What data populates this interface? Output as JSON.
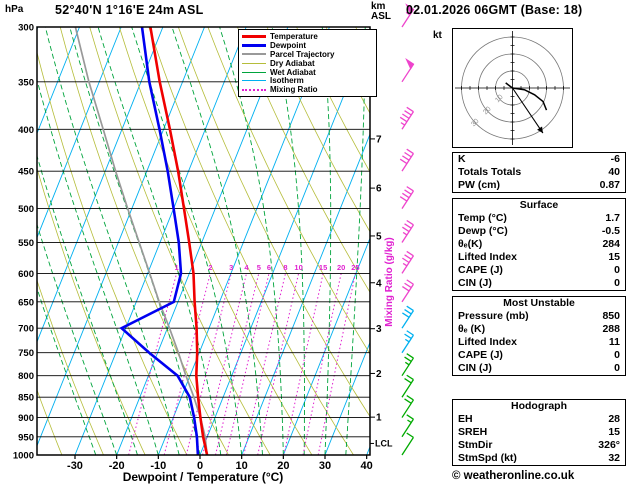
{
  "header": {
    "pressure_unit": "hPa",
    "station": "52°40'N 1°16'E 24m ASL",
    "km": "km",
    "asl": "ASL",
    "datetime": "02.01.2026 06GMT (Base: 18)"
  },
  "legend": {
    "items": [
      {
        "label": "Temperature",
        "color": "#f00000",
        "w": 3,
        "dash": "solid"
      },
      {
        "label": "Dewpoint",
        "color": "#0000f0",
        "w": 3,
        "dash": "solid"
      },
      {
        "label": "Parcel Trajectory",
        "color": "#999999",
        "w": 2,
        "dash": "solid"
      },
      {
        "label": "Dry Adiabat",
        "color": "#b5bd3a",
        "w": 1,
        "dash": "solid"
      },
      {
        "label": "Wet Adiabat",
        "color": "#00a43c",
        "w": 1,
        "dash": "solid"
      },
      {
        "label": "Isotherm",
        "color": "#00b0f0",
        "w": 1,
        "dash": "solid"
      },
      {
        "label": "Mixing Ratio",
        "color": "#e020d0",
        "w": 2,
        "dash": "dotted"
      }
    ]
  },
  "axes": {
    "pressure_ticks": [
      300,
      350,
      400,
      450,
      500,
      550,
      600,
      650,
      700,
      750,
      800,
      850,
      900,
      950,
      1000
    ],
    "temp_ticks": [
      -30,
      -20,
      -10,
      0,
      10,
      20,
      30,
      40
    ],
    "xlabel": "Dewpoint / Temperature (°C)",
    "km_ticks": [
      1,
      2,
      3,
      4,
      5,
      6,
      7
    ],
    "mixing_ratio_label": "Mixing Ratio (g/kg)",
    "mixing_ratio_values": [
      1,
      2,
      3,
      4,
      5,
      6,
      8,
      10,
      15,
      20,
      25
    ],
    "lcl_label": "LCL"
  },
  "hodograph": {
    "unit": "kt",
    "ring_labels": [
      "10",
      "20",
      "30"
    ]
  },
  "table": {
    "sections": [
      {
        "title": "",
        "rows": [
          [
            "K",
            "-6"
          ],
          [
            "Totals Totals",
            "40"
          ],
          [
            "PW (cm)",
            "0.87"
          ]
        ]
      },
      {
        "title": "Surface",
        "rows": [
          [
            "Temp (°C)",
            "1.7"
          ],
          [
            "Dewp (°C)",
            "-0.5"
          ],
          [
            "θₑ(K)",
            "284"
          ],
          [
            "Lifted Index",
            "15"
          ],
          [
            "CAPE (J)",
            "0"
          ],
          [
            "CIN (J)",
            "0"
          ]
        ]
      },
      {
        "title": "Most Unstable",
        "rows": [
          [
            "Pressure (mb)",
            "850"
          ],
          [
            "θₑ (K)",
            "288"
          ],
          [
            "Lifted Index",
            "11"
          ],
          [
            "CAPE (J)",
            "0"
          ],
          [
            "CIN (J)",
            "0"
          ]
        ]
      },
      {
        "title": "Hodograph",
        "rows": [
          [
            "EH",
            "28"
          ],
          [
            "SREH",
            "15"
          ],
          [
            "StmDir",
            "326°"
          ],
          [
            "StmSpd (kt)",
            "32"
          ]
        ]
      }
    ]
  },
  "footer": {
    "copyright": "© weatheronline.co.uk"
  },
  "colors": {
    "temperature": "#f00000",
    "dewpoint": "#0000f0",
    "parcel": "#999999",
    "dry_adiabat": "#b5bd3a",
    "wet_adiabat": "#00a43c",
    "isotherm": "#00b0f0",
    "mixing_ratio": "#e020d0",
    "grid": "#000000",
    "barb_low": "#00aa00",
    "barb_mid": "#00b0f0",
    "barb_high": "#ee44cc"
  },
  "chart_data": {
    "type": "line",
    "title": "Skew-T log-P sounding 52°40'N 1°16'E 24m ASL",
    "x_axis": {
      "label": "Dewpoint / Temperature (°C)",
      "range": [
        -35,
        40
      ]
    },
    "y_axis": {
      "label": "hPa",
      "range": [
        1000,
        300
      ],
      "scale": "log"
    },
    "pressure_hPa": [
      1000,
      950,
      900,
      850,
      800,
      750,
      700,
      650,
      600,
      550,
      500,
      450,
      400,
      350,
      300
    ],
    "temperature_C": [
      1.7,
      -1,
      -3.5,
      -6,
      -8.5,
      -10.5,
      -13,
      -16,
      -19,
      -23,
      -27.5,
      -32.5,
      -38.5,
      -45.5,
      -53
    ],
    "dewpoint_C": [
      -0.5,
      -2.5,
      -5,
      -8,
      -13,
      -22,
      -31,
      -21,
      -22,
      -25.5,
      -30,
      -35,
      -41,
      -48,
      -55
    ],
    "parcel_C": [
      1.7,
      -0.5,
      -3.5,
      -7,
      -11,
      -15,
      -19.5,
      -24.5,
      -29.5,
      -35,
      -41,
      -47.5,
      -54.5,
      -62.5,
      -71
    ],
    "wind_barbs": [
      {
        "p": 1000,
        "kt": 10,
        "band": "low"
      },
      {
        "p": 950,
        "kt": 15,
        "band": "low"
      },
      {
        "p": 900,
        "kt": 20,
        "band": "low"
      },
      {
        "p": 850,
        "kt": 20,
        "band": "low"
      },
      {
        "p": 800,
        "kt": 25,
        "band": "low"
      },
      {
        "p": 750,
        "kt": 25,
        "band": "mid"
      },
      {
        "p": 700,
        "kt": 30,
        "band": "mid"
      },
      {
        "p": 650,
        "kt": 30,
        "band": "high"
      },
      {
        "p": 600,
        "kt": 35,
        "band": "high"
      },
      {
        "p": 550,
        "kt": 35,
        "band": "high"
      },
      {
        "p": 500,
        "kt": 40,
        "band": "high"
      },
      {
        "p": 450,
        "kt": 40,
        "band": "high"
      },
      {
        "p": 400,
        "kt": 45,
        "band": "high"
      },
      {
        "p": 350,
        "kt": 50,
        "band": "high"
      },
      {
        "p": 300,
        "kt": 55,
        "band": "high"
      }
    ],
    "lcl_pressure_hPa": 968,
    "hodograph_trace_kt": [
      [
        -4,
        -3
      ],
      [
        0,
        0
      ],
      [
        7,
        1
      ],
      [
        13,
        4
      ],
      [
        18,
        8
      ],
      [
        20,
        13
      ]
    ],
    "storm_motion": {
      "dir_deg": 326,
      "speed_kt": 32
    }
  }
}
